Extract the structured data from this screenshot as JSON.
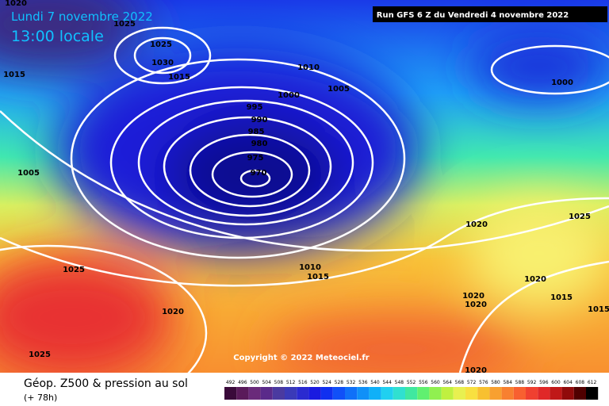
{
  "header": {
    "date": "Lundi 7 novembre 2022",
    "time": "13:00 locale",
    "run": "Run GFS 6 Z du Vendredi 4 novembre 2022"
  },
  "isobar_labels": [
    "1020",
    "1025",
    "1025",
    "1030",
    "1015",
    "1015",
    "1010",
    "1005",
    "1000",
    "995",
    "990",
    "985",
    "980",
    "975",
    "970",
    "1005",
    "1000",
    "1025",
    "1020",
    "1010",
    "1015",
    "1025",
    "1020",
    "1020",
    "1020",
    "1020",
    "1015",
    "1015",
    "1025",
    "1020"
  ],
  "copyright": "Copyright © 2022 Meteociel.fr",
  "footer": {
    "title": "Géop. Z500 & pression au sol",
    "subtitle": "(+ 78h)"
  },
  "legend": {
    "labels": [
      "492",
      "496",
      "500",
      "504",
      "508",
      "512",
      "516",
      "520",
      "524",
      "528",
      "532",
      "536",
      "540",
      "544",
      "548",
      "552",
      "556",
      "560",
      "564",
      "568",
      "572",
      "576",
      "580",
      "584",
      "588",
      "592",
      "596",
      "600",
      "604",
      "608",
      "612"
    ],
    "colors": [
      "#3a0a3a",
      "#5a1a5a",
      "#6a2a7a",
      "#5a2a8a",
      "#4a3aa0",
      "#3a3ab8",
      "#2a2ad0",
      "#1a1ae0",
      "#1030f0",
      "#1050f8",
      "#1070f8",
      "#1090f8",
      "#10b0f8",
      "#20d0f0",
      "#30e0d0",
      "#40e8a0",
      "#60f070",
      "#90f050",
      "#c0f040",
      "#e8f050",
      "#f8e040",
      "#f8c030",
      "#f8a030",
      "#f88030",
      "#f86030",
      "#f04030",
      "#e02828",
      "#c01818",
      "#900a0a",
      "#500000",
      "#000000"
    ]
  }
}
